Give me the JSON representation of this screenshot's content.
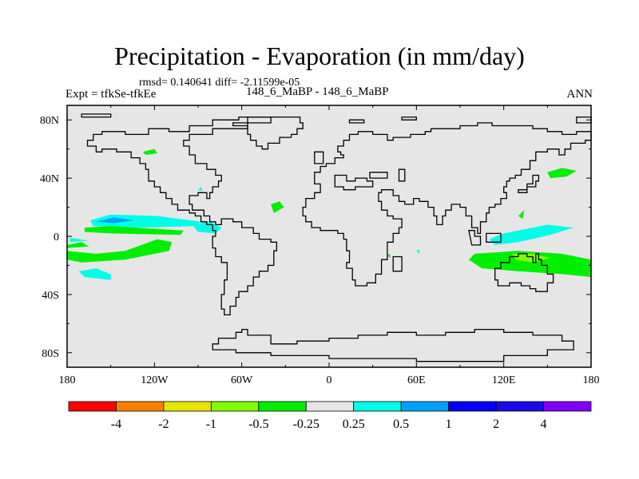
{
  "chart_data": {
    "type": "heatmap",
    "title": "Precipitation - Evaporation (in mm/day)",
    "subtitle": "rmsd= 0.140641 diff= -2.11599e-05",
    "left_label": "Expt = tfkSe-tfkEe",
    "center_label": "148_6_MaBP - 148_6_MaBP",
    "right_label": "ANN",
    "xlim": [
      -180,
      180
    ],
    "ylim": [
      -90,
      90
    ],
    "x_ticks": [
      {
        "value": -180,
        "label": "180"
      },
      {
        "value": -120,
        "label": "120W"
      },
      {
        "value": -60,
        "label": "60W"
      },
      {
        "value": 0,
        "label": "0"
      },
      {
        "value": 60,
        "label": "60E"
      },
      {
        "value": 120,
        "label": "120E"
      },
      {
        "value": 180,
        "label": "180"
      }
    ],
    "y_ticks": [
      {
        "value": 80,
        "label": "80N"
      },
      {
        "value": 40,
        "label": "40N"
      },
      {
        "value": 0,
        "label": "0"
      },
      {
        "value": -40,
        "label": "40S"
      },
      {
        "value": -80,
        "label": "80S"
      }
    ],
    "colorbar": {
      "colors": [
        "#ff0000",
        "#ff8000",
        "#e6e600",
        "#80ff00",
        "#00ee00",
        "#e6e6e6",
        "#00ffe6",
        "#00a0ff",
        "#0000ff",
        "#1a0ce6",
        "#8000ff"
      ],
      "boundaries": [
        "-4",
        "-2",
        "-1",
        "-0.5",
        "-0.25",
        "0.25",
        "0.5",
        "1",
        "2",
        "4"
      ]
    },
    "regions": [
      {
        "name": "north-pacific-positive",
        "level": "0.5",
        "polygon": [
          [
            -164,
            11
          ],
          [
            -150,
            15
          ],
          [
            -118,
            14
          ],
          [
            -88,
            10
          ],
          [
            -92,
            7
          ],
          [
            -130,
            6
          ],
          [
            -162,
            7
          ]
        ]
      },
      {
        "name": "north-pacific-core",
        "level": "1",
        "polygon": [
          [
            -160,
            10
          ],
          [
            -148,
            13
          ],
          [
            -134,
            11
          ],
          [
            -148,
            9
          ]
        ]
      },
      {
        "name": "tropical-pacific-negative",
        "level": "-0.25",
        "polygon": [
          [
            -168,
            6
          ],
          [
            -150,
            7
          ],
          [
            -100,
            4
          ],
          [
            -102,
            1
          ],
          [
            -150,
            2
          ],
          [
            -168,
            3
          ]
        ]
      },
      {
        "name": "south-pacific-negative",
        "level": "-0.25",
        "polygon": [
          [
            -180,
            -10
          ],
          [
            -160,
            -12
          ],
          [
            -140,
            -10
          ],
          [
            -118,
            -2
          ],
          [
            -108,
            -4
          ],
          [
            -110,
            -10
          ],
          [
            -140,
            -16
          ],
          [
            -170,
            -18
          ],
          [
            -180,
            -16
          ]
        ]
      },
      {
        "name": "east-pacific-negative-small",
        "level": "-0.25",
        "polygon": [
          [
            -180,
            -6
          ],
          [
            -170,
            -4
          ],
          [
            -165,
            -7
          ],
          [
            -180,
            -8
          ]
        ]
      },
      {
        "name": "pacific-patch-positive",
        "level": "0.5",
        "polygon": [
          [
            -172,
            -24
          ],
          [
            -160,
            -22
          ],
          [
            -150,
            -26
          ],
          [
            -150,
            -30
          ],
          [
            -168,
            -28
          ]
        ]
      },
      {
        "name": "south-pacific-edge-positive",
        "level": "0.5",
        "polygon": [
          [
            -178,
            -1
          ],
          [
            -165,
            -3
          ],
          [
            -178,
            -4
          ]
        ]
      },
      {
        "name": "central-america-positive",
        "level": "0.5",
        "polygon": [
          [
            -94,
            8
          ],
          [
            -82,
            10
          ],
          [
            -74,
            6
          ],
          [
            -78,
            2
          ],
          [
            -90,
            3
          ]
        ]
      },
      {
        "name": "atlantic-negative",
        "level": "-0.25",
        "polygon": [
          [
            -40,
            22
          ],
          [
            -34,
            24
          ],
          [
            -31,
            20
          ],
          [
            -38,
            16
          ]
        ]
      },
      {
        "name": "arctic-negative",
        "level": "-0.25",
        "polygon": [
          [
            -128,
            58
          ],
          [
            -120,
            60
          ],
          [
            -118,
            57
          ],
          [
            -126,
            56
          ]
        ]
      },
      {
        "name": "gulf-positive",
        "level": "0.5",
        "polygon": [
          [
            -90,
            32
          ],
          [
            -88,
            34
          ],
          [
            -87,
            31
          ]
        ]
      },
      {
        "name": "indian-negative-dot",
        "level": "-0.25",
        "polygon": [
          [
            40,
            -13
          ],
          [
            42,
            -12
          ],
          [
            42,
            -15
          ]
        ]
      },
      {
        "name": "indian-positive-dot",
        "level": "0.5",
        "polygon": [
          [
            60,
            -10
          ],
          [
            62,
            -9
          ],
          [
            62,
            -12
          ]
        ]
      },
      {
        "name": "west-pacific-positive",
        "level": "0.5",
        "polygon": [
          [
            110,
            -2
          ],
          [
            120,
            2
          ],
          [
            150,
            8
          ],
          [
            168,
            6
          ],
          [
            152,
            1
          ],
          [
            130,
            -4
          ],
          [
            114,
            -6
          ]
        ]
      },
      {
        "name": "west-pacific-negative",
        "level": "-0.25",
        "polygon": [
          [
            100,
            -12
          ],
          [
            130,
            -10
          ],
          [
            160,
            -12
          ],
          [
            180,
            -16
          ],
          [
            180,
            -28
          ],
          [
            160,
            -26
          ],
          [
            130,
            -24
          ],
          [
            105,
            -22
          ],
          [
            96,
            -16
          ]
        ]
      },
      {
        "name": "west-pacific-core",
        "level": "-0.5",
        "polygon": [
          [
            126,
            -12
          ],
          [
            140,
            -12
          ],
          [
            152,
            -15
          ],
          [
            140,
            -18
          ],
          [
            128,
            -16
          ]
        ]
      },
      {
        "name": "asia-negative",
        "level": "-0.25",
        "polygon": [
          [
            130,
            14
          ],
          [
            134,
            18
          ],
          [
            133,
            12
          ]
        ]
      },
      {
        "name": "north-pacific-negative",
        "level": "-0.25",
        "polygon": [
          [
            150,
            44
          ],
          [
            160,
            47
          ],
          [
            170,
            45
          ],
          [
            163,
            41
          ],
          [
            152,
            40
          ]
        ]
      }
    ]
  }
}
